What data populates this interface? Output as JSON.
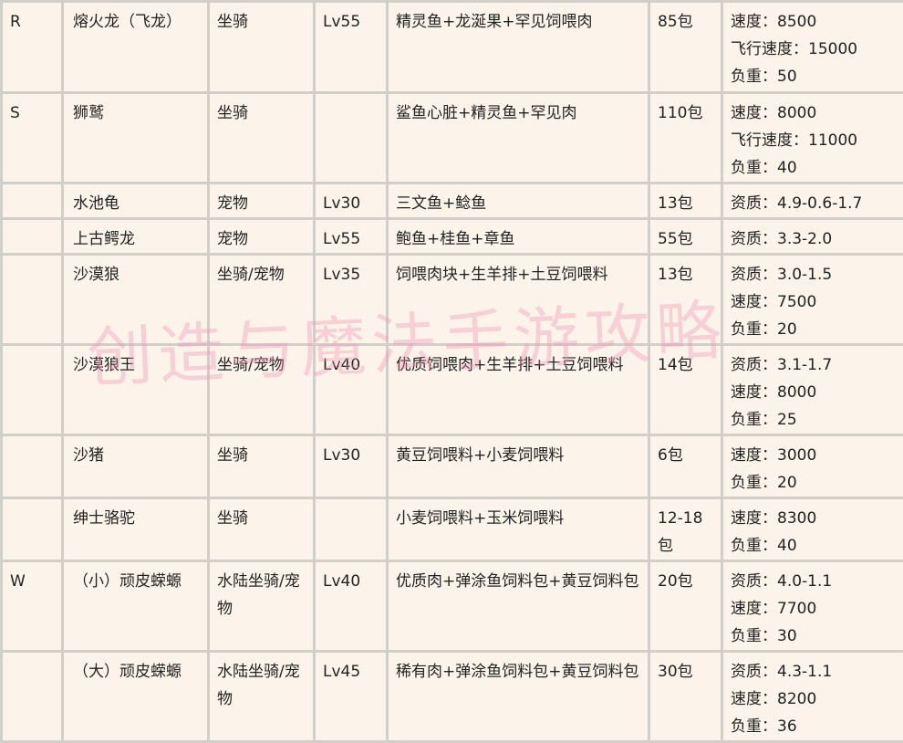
{
  "rows": [
    {
      "letter": "R",
      "name": "熔火龙（飞龙）",
      "type": "坐骑",
      "level": "Lv55",
      "food": "精灵鱼+龙涎果+罕见饲喂肉",
      "amount": "85包",
      "attrs": [
        "速度：8500",
        "飞行速度：15000",
        "负重：50"
      ]
    },
    {
      "letter": "S",
      "name": "狮鹫",
      "type": "坐骑",
      "level": "",
      "food": "鲨鱼心脏+精灵鱼+罕见肉",
      "amount": "110包",
      "attrs": [
        "速度：8000",
        "飞行速度：11000",
        "负重：40"
      ]
    },
    {
      "letter": "",
      "name": "水池龟",
      "type": "宠物",
      "level": "Lv30",
      "food": "三文鱼+鲶鱼",
      "amount": "13包",
      "attrs": [
        "资质：4.9-0.6-1.7"
      ]
    },
    {
      "letter": "",
      "name": "上古鳄龙",
      "type": "宠物",
      "level": "Lv55",
      "food": "鲍鱼+桂鱼+章鱼",
      "amount": "55包",
      "attrs": [
        "资质：3.3-2.0"
      ]
    },
    {
      "letter": "",
      "name": "沙漠狼",
      "type": "坐骑/宠物",
      "level": "Lv35",
      "food": "饲喂肉块+生羊排+土豆饲喂料",
      "amount": "13包",
      "attrs": [
        "资质：3.0-1.5",
        "速度：7500",
        "负重：20"
      ]
    },
    {
      "letter": "",
      "name": "沙漠狼王",
      "type": "坐骑/宠物",
      "level": "Lv40",
      "food": "优质饲喂肉+生羊排+土豆饲喂料",
      "amount": "14包",
      "attrs": [
        "资质：3.1-1.7",
        "速度：8000",
        "负重：25"
      ]
    },
    {
      "letter": "",
      "name": "沙猪",
      "type": "坐骑",
      "level": "Lv30",
      "food": "黄豆饲喂料+小麦饲喂料",
      "amount": "6包",
      "attrs": [
        "速度：3000",
        "负重：20"
      ]
    },
    {
      "letter": "",
      "name": "绅士骆驼",
      "type": "坐骑",
      "level": "",
      "food": "小麦饲喂料+玉米饲喂料",
      "amount": "12-18包",
      "attrs": [
        "速度：8300",
        "负重：40"
      ]
    },
    {
      "letter": "W",
      "name": "（小）顽皮蝾螈",
      "type": "水陆坐骑/宠物",
      "level": "Lv40",
      "food": "优质肉+弹涂鱼饲料包+黄豆饲料包",
      "amount": "20包",
      "attrs": [
        "资质：4.0-1.1",
        "速度：7700",
        "负重：30"
      ]
    },
    {
      "letter": "",
      "name": "（大）顽皮蝾螈",
      "type": "水陆坐骑/宠物",
      "level": "Lv45",
      "food": "稀有肉+弹涂鱼饲料包+黄豆饲料包",
      "amount": "30包",
      "attrs": [
        "资质：4.3-1.1",
        "速度：8200",
        "负重：36"
      ]
    }
  ],
  "watermark": "创造与魔法手游攻略"
}
